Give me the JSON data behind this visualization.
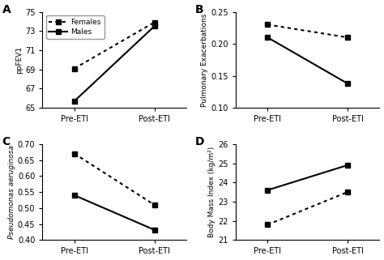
{
  "panel_A": {
    "label": "A",
    "ylabel": "ppFEV1",
    "ylim": [
      65,
      75
    ],
    "yticks": [
      65,
      67,
      69,
      71,
      73,
      75
    ],
    "females_pre": 69.1,
    "females_post": 73.9,
    "males_pre": 65.7,
    "males_post": 73.5
  },
  "panel_B": {
    "label": "B",
    "ylabel": "Pulmonary Exacerbations",
    "ylim": [
      0.1,
      0.25
    ],
    "yticks": [
      0.1,
      0.15,
      0.2,
      0.25
    ],
    "females_pre": 0.23,
    "females_post": 0.21,
    "males_pre": 0.21,
    "males_post": 0.138
  },
  "panel_C": {
    "label": "C",
    "ylabel": "Pseudomonas aeruginosa",
    "ylim": [
      0.4,
      0.7
    ],
    "yticks": [
      0.4,
      0.45,
      0.5,
      0.55,
      0.6,
      0.65,
      0.7
    ],
    "females_pre": 0.67,
    "females_post": 0.51,
    "males_pre": 0.54,
    "males_post": 0.432
  },
  "panel_D": {
    "label": "D",
    "ylabel": "Body Mass Index (kg/m²)",
    "ylim": [
      21,
      26
    ],
    "yticks": [
      21,
      22,
      23,
      24,
      25,
      26
    ],
    "females_pre": 21.8,
    "females_post": 23.5,
    "males_pre": 23.6,
    "males_post": 24.9
  },
  "females_style": {
    "linestyle": "dotted",
    "color": "black",
    "marker": "s",
    "markersize": 4.5,
    "linewidth": 1.5
  },
  "males_style": {
    "linestyle": "solid",
    "color": "black",
    "marker": "s",
    "markersize": 4.5,
    "linewidth": 1.5
  },
  "xtick_labels": [
    "Pre-ETI",
    "Post-ETI"
  ],
  "legend_labels": [
    "Females",
    "Males"
  ],
  "background_color": "#ffffff"
}
